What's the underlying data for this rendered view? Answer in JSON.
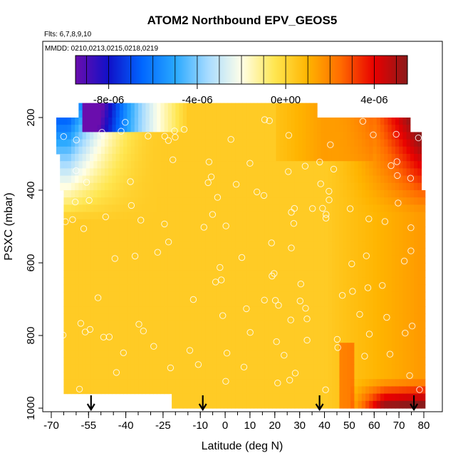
{
  "chart_data": {
    "type": "heatmap",
    "title": "ATOM2 Northbound EPV_GEOS5",
    "notes": {
      "flights": "Flts: 6,7,8,9,10",
      "dates": "MMDD: 0210,0213,0215,0218,0219"
    },
    "xlabel": "Latitude (deg N)",
    "ylabel": "PSXC (mbar)",
    "xlim": [
      -70,
      83
    ],
    "ylim": [
      1000,
      50
    ],
    "x_ticks_major": [
      -70,
      -55,
      -40,
      -25,
      -10,
      0,
      10,
      20,
      30,
      40,
      50,
      60,
      70,
      80
    ],
    "x_tick_labels": [
      "-70",
      "-55",
      "-40",
      "-25",
      "-10",
      "0",
      "10",
      "20",
      "30",
      "40",
      "50",
      "60",
      "70",
      "80"
    ],
    "x_ticks_minor_step": 5,
    "y_ticks": [
      200,
      400,
      600,
      800,
      1000
    ],
    "y_tick_labels": [
      "200",
      "400",
      "600",
      "800",
      "1000"
    ],
    "colorbar": {
      "min": -9.5e-06,
      "max": 5.5e-06,
      "ticks": [
        -8e-06,
        -4e-06,
        0,
        4e-06
      ],
      "tick_labels": [
        "-8e-06",
        "-4e-06",
        "0e+00",
        "4e-06"
      ],
      "colors": [
        "#6a0dad",
        "#1010c8",
        "#0066ff",
        "#28a8ff",
        "#a8dcff",
        "#ffffe8",
        "#ffe650",
        "#ffb400",
        "#ff6a00",
        "#e80000",
        "#8b1a1a"
      ]
    },
    "arrows_latitude": [
      -54,
      -9,
      38,
      76
    ],
    "grid": false,
    "legend": "colorbar-top"
  }
}
